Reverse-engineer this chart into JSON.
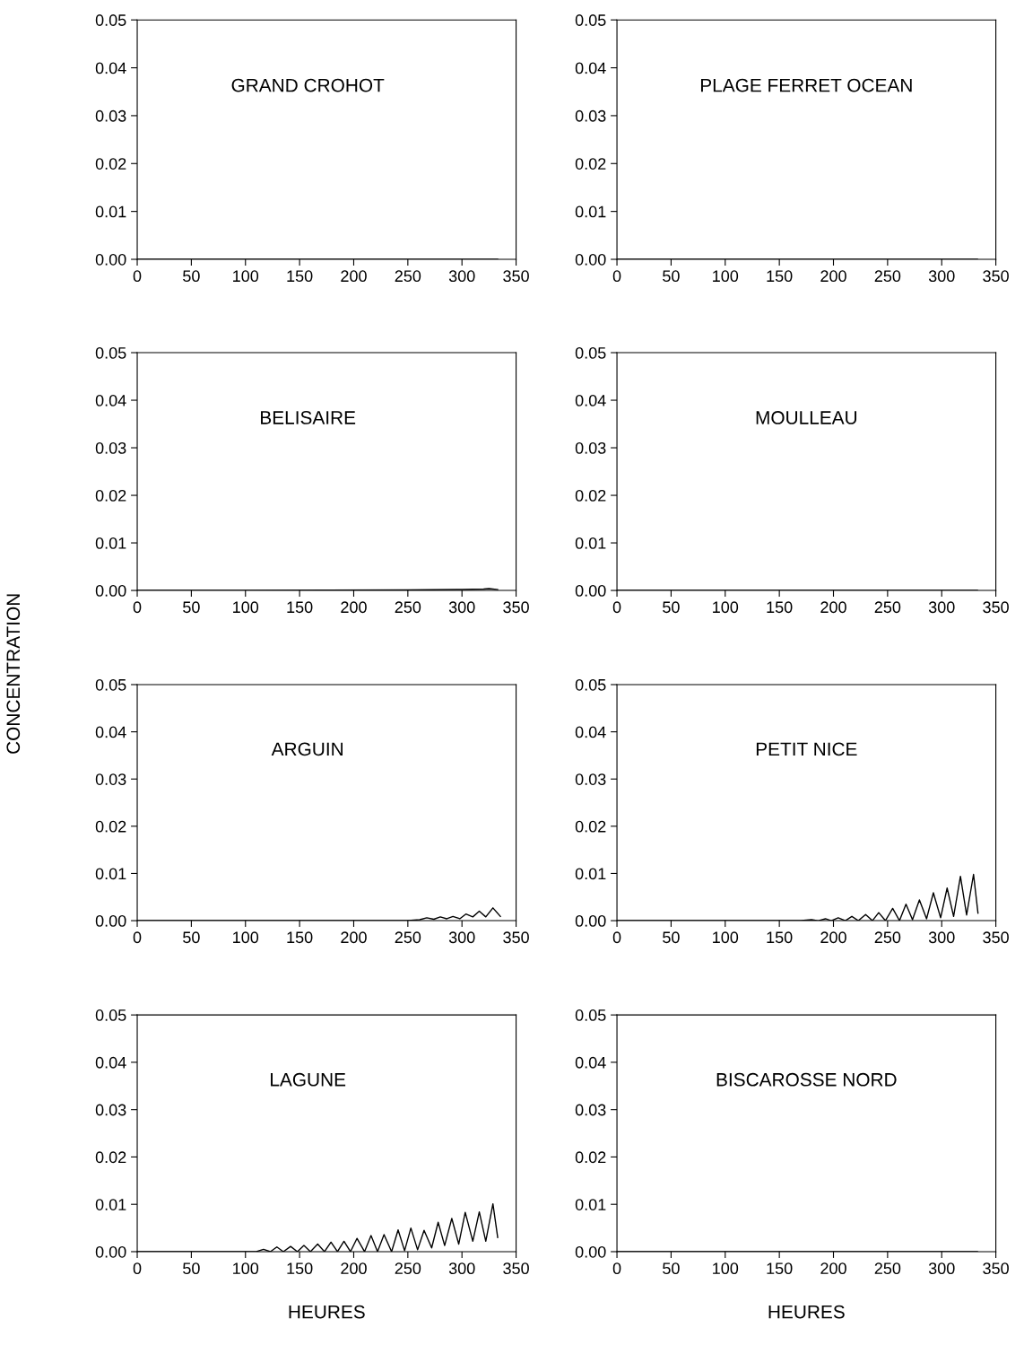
{
  "chart_data": [
    {
      "type": "line",
      "title": "GRAND CROHOT",
      "x": [
        0,
        333
      ],
      "values": [
        0,
        0
      ],
      "color": "#000000",
      "xlim": [
        0,
        350
      ],
      "ylim": [
        0,
        0.05
      ],
      "xticks": [
        0,
        50,
        100,
        150,
        200,
        250,
        300,
        350
      ],
      "yticks": [
        {
          "value": 0,
          "label": "0.00"
        },
        {
          "value": 0.01,
          "label": "0.01"
        },
        {
          "value": 0.02,
          "label": "0.02"
        },
        {
          "value": 0.03,
          "label": "0.03"
        },
        {
          "value": 0.04,
          "label": "0.04"
        },
        {
          "value": 0.05,
          "label": "0.05"
        }
      ],
      "grid": false
    },
    {
      "type": "line",
      "title": "PLAGE FERRET OCEAN",
      "x": [
        0,
        333
      ],
      "values": [
        0,
        0
      ],
      "color": "#000000",
      "xlim": [
        0,
        350
      ],
      "ylim": [
        0,
        0.05
      ],
      "xticks": [
        0,
        50,
        100,
        150,
        200,
        250,
        300,
        350
      ],
      "yticks": [
        {
          "value": 0,
          "label": "0.00"
        },
        {
          "value": 0.01,
          "label": "0.01"
        },
        {
          "value": 0.02,
          "label": "0.02"
        },
        {
          "value": 0.03,
          "label": "0.03"
        },
        {
          "value": 0.04,
          "label": "0.04"
        },
        {
          "value": 0.05,
          "label": "0.05"
        }
      ],
      "grid": false
    },
    {
      "type": "line",
      "title": "BELISAIRE",
      "ylabel": "CONCENTRATION",
      "x": [
        0,
        100,
        250,
        300,
        320,
        325,
        333
      ],
      "values": [
        0,
        0,
        0.0001,
        0.0002,
        0.0003,
        0.0004,
        0.0002
      ],
      "color": "#000000",
      "xlim": [
        0,
        350
      ],
      "ylim": [
        0,
        0.05
      ],
      "xticks": [
        0,
        50,
        100,
        150,
        200,
        250,
        300,
        350
      ],
      "yticks": [
        {
          "value": 0,
          "label": "0.00"
        },
        {
          "value": 0.01,
          "label": "0.01"
        },
        {
          "value": 0.02,
          "label": "0.02"
        },
        {
          "value": 0.03,
          "label": "0.03"
        },
        {
          "value": 0.04,
          "label": "0.04"
        },
        {
          "value": 0.05,
          "label": "0.05"
        }
      ],
      "grid": false
    },
    {
      "type": "line",
      "title": "MOULLEAU",
      "x": [
        0,
        333
      ],
      "values": [
        0,
        0
      ],
      "color": "#000000",
      "xlim": [
        0,
        350
      ],
      "ylim": [
        0,
        0.05
      ],
      "xticks": [
        0,
        50,
        100,
        150,
        200,
        250,
        300,
        350
      ],
      "yticks": [
        {
          "value": 0,
          "label": "0.00"
        },
        {
          "value": 0.01,
          "label": "0.01"
        },
        {
          "value": 0.02,
          "label": "0.02"
        },
        {
          "value": 0.03,
          "label": "0.03"
        },
        {
          "value": 0.04,
          "label": "0.04"
        },
        {
          "value": 0.05,
          "label": "0.05"
        }
      ],
      "grid": false
    },
    {
      "type": "line",
      "title": "ARGUIN",
      "x": [
        0,
        250,
        261,
        267.5,
        274,
        280,
        286,
        291.7,
        298,
        303.6,
        310,
        316,
        322,
        328.6,
        335.5
      ],
      "values": [
        0,
        0,
        0.0002,
        0.0006,
        0.0003,
        0.0008,
        0.0004,
        0.0009,
        0.0004,
        0.0014,
        0.0008,
        0.002,
        0.0008,
        0.0027,
        0.0009
      ],
      "color": "#000000",
      "xlim": [
        0,
        350
      ],
      "ylim": [
        0,
        0.05
      ],
      "xticks": [
        0,
        50,
        100,
        150,
        200,
        250,
        300,
        350
      ],
      "yticks": [
        {
          "value": 0,
          "label": "0.00"
        },
        {
          "value": 0.01,
          "label": "0.01"
        },
        {
          "value": 0.02,
          "label": "0.02"
        },
        {
          "value": 0.03,
          "label": "0.03"
        },
        {
          "value": 0.04,
          "label": "0.04"
        },
        {
          "value": 0.05,
          "label": "0.05"
        }
      ],
      "grid": false
    },
    {
      "type": "line",
      "title": "PETIT NICE",
      "x": [
        0,
        170,
        179.7,
        186,
        192.6,
        198,
        204.4,
        211,
        217,
        223,
        229.7,
        236,
        241.8,
        248,
        254.7,
        261,
        267,
        273,
        279.4,
        286,
        292.3,
        299,
        305,
        311,
        317.3,
        323,
        329.4,
        333.5
      ],
      "values": [
        0,
        0,
        0.0002,
        0,
        0.0004,
        0,
        0.0006,
        0,
        0.0009,
        0,
        0.0013,
        0,
        0.0017,
        0,
        0.0026,
        0,
        0.0035,
        0.0002,
        0.0044,
        0.0004,
        0.0059,
        0.0006,
        0.0069,
        0.0009,
        0.0094,
        0.0012,
        0.0098,
        0.0016
      ],
      "color": "#000000",
      "xlim": [
        0,
        350
      ],
      "ylim": [
        0,
        0.05
      ],
      "xticks": [
        0,
        50,
        100,
        150,
        200,
        250,
        300,
        350
      ],
      "yticks": [
        {
          "value": 0,
          "label": "0.00"
        },
        {
          "value": 0.01,
          "label": "0.01"
        },
        {
          "value": 0.02,
          "label": "0.02"
        },
        {
          "value": 0.03,
          "label": "0.03"
        },
        {
          "value": 0.04,
          "label": "0.04"
        },
        {
          "value": 0.05,
          "label": "0.05"
        }
      ],
      "grid": false
    },
    {
      "type": "line",
      "title": "LAGUNE",
      "xlabel": "HEURES",
      "x": [
        0,
        100,
        110,
        116.7,
        123,
        129,
        135,
        141.7,
        148,
        154,
        160,
        166.7,
        173,
        179,
        185,
        191,
        197,
        203,
        210,
        216,
        222,
        228,
        235,
        241,
        247,
        252.8,
        259,
        265,
        272,
        278,
        284,
        290.6,
        297,
        303,
        310,
        316,
        322,
        328.6,
        333
      ],
      "values": [
        0,
        0,
        0,
        0.0005,
        0,
        0.001,
        0,
        0.0011,
        0,
        0.0013,
        0,
        0.0016,
        0,
        0.002,
        0,
        0.0022,
        0,
        0.0028,
        0,
        0.0034,
        0,
        0.0036,
        0,
        0.0046,
        0.0002,
        0.005,
        0.0004,
        0.0045,
        0.0008,
        0.0062,
        0.0013,
        0.007,
        0.0016,
        0.0083,
        0.0022,
        0.0084,
        0.0022,
        0.0101,
        0.003
      ],
      "color": "#000000",
      "xlim": [
        0,
        350
      ],
      "ylim": [
        0,
        0.05
      ],
      "xticks": [
        0,
        50,
        100,
        150,
        200,
        250,
        300,
        350
      ],
      "yticks": [
        {
          "value": 0,
          "label": "0.00"
        },
        {
          "value": 0.01,
          "label": "0.01"
        },
        {
          "value": 0.02,
          "label": "0.02"
        },
        {
          "value": 0.03,
          "label": "0.03"
        },
        {
          "value": 0.04,
          "label": "0.04"
        },
        {
          "value": 0.05,
          "label": "0.05"
        }
      ],
      "grid": false
    },
    {
      "type": "line",
      "title": "BISCAROSSE NORD",
      "xlabel": "HEURES",
      "x": [
        0,
        333
      ],
      "values": [
        0,
        0
      ],
      "color": "#000000",
      "xlim": [
        0,
        350
      ],
      "ylim": [
        0,
        0.05
      ],
      "xticks": [
        0,
        50,
        100,
        150,
        200,
        250,
        300,
        350
      ],
      "yticks": [
        {
          "value": 0,
          "label": "0.00"
        },
        {
          "value": 0.01,
          "label": "0.01"
        },
        {
          "value": 0.02,
          "label": "0.02"
        },
        {
          "value": 0.03,
          "label": "0.03"
        },
        {
          "value": 0.04,
          "label": "0.04"
        },
        {
          "value": 0.05,
          "label": "0.05"
        }
      ],
      "grid": false
    }
  ]
}
